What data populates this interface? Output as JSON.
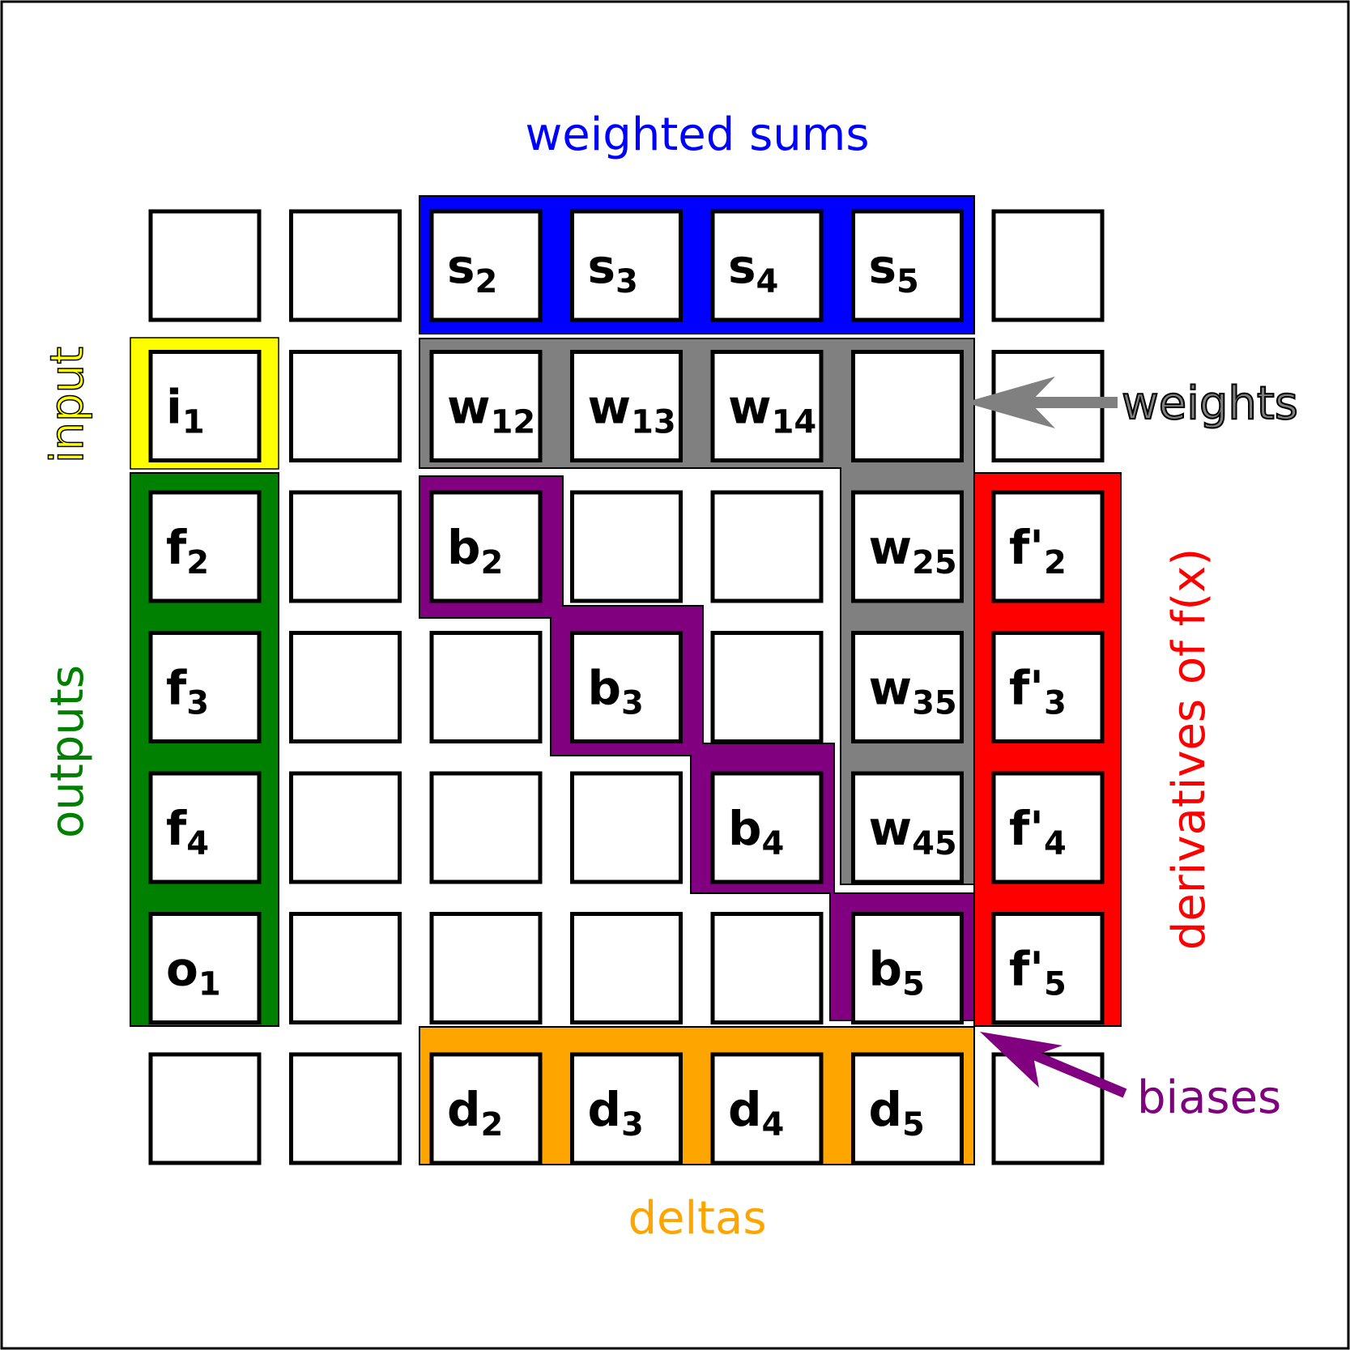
{
  "labels": {
    "weighted_sums": "weighted sums",
    "input": "input",
    "outputs": "outputs",
    "weights": "weights",
    "derivatives": "derivatives of f(x)",
    "biases": "biases",
    "deltas": "deltas"
  },
  "colors": {
    "weighted_sums": "#0000ff",
    "input": "#ffff00",
    "outputs": "#008000",
    "weights": "#808080",
    "derivatives": "#ff0000",
    "biases": "#800080",
    "deltas": "#ffa500",
    "output_cell_border": "#ff0000"
  },
  "grid": {
    "rows": 7,
    "cols": 7,
    "cells": [
      {
        "row": 0,
        "col": 2,
        "base": "s",
        "sub": "2"
      },
      {
        "row": 0,
        "col": 3,
        "base": "s",
        "sub": "3"
      },
      {
        "row": 0,
        "col": 4,
        "base": "s",
        "sub": "4"
      },
      {
        "row": 0,
        "col": 5,
        "base": "s",
        "sub": "5"
      },
      {
        "row": 1,
        "col": 0,
        "base": "i",
        "sub": "1"
      },
      {
        "row": 1,
        "col": 2,
        "base": "w",
        "sub": "12"
      },
      {
        "row": 1,
        "col": 3,
        "base": "w",
        "sub": "13"
      },
      {
        "row": 1,
        "col": 4,
        "base": "w",
        "sub": "14"
      },
      {
        "row": 2,
        "col": 0,
        "base": "f",
        "sub": "2"
      },
      {
        "row": 2,
        "col": 2,
        "base": "b",
        "sub": "2"
      },
      {
        "row": 2,
        "col": 5,
        "base": "w",
        "sub": "25"
      },
      {
        "row": 2,
        "col": 6,
        "base": "f'",
        "sub": "2"
      },
      {
        "row": 3,
        "col": 0,
        "base": "f",
        "sub": "3"
      },
      {
        "row": 3,
        "col": 3,
        "base": "b",
        "sub": "3"
      },
      {
        "row": 3,
        "col": 5,
        "base": "w",
        "sub": "35"
      },
      {
        "row": 3,
        "col": 6,
        "base": "f'",
        "sub": "3"
      },
      {
        "row": 4,
        "col": 0,
        "base": "f",
        "sub": "4"
      },
      {
        "row": 4,
        "col": 4,
        "base": "b",
        "sub": "4"
      },
      {
        "row": 4,
        "col": 5,
        "base": "w",
        "sub": "45"
      },
      {
        "row": 4,
        "col": 6,
        "base": "f'",
        "sub": "4"
      },
      {
        "row": 5,
        "col": 0,
        "base": "o",
        "sub": "1"
      },
      {
        "row": 5,
        "col": 5,
        "base": "b",
        "sub": "5"
      },
      {
        "row": 5,
        "col": 6,
        "base": "f'",
        "sub": "5"
      },
      {
        "row": 6,
        "col": 2,
        "base": "d",
        "sub": "2"
      },
      {
        "row": 6,
        "col": 3,
        "base": "d",
        "sub": "3"
      },
      {
        "row": 6,
        "col": 4,
        "base": "d",
        "sub": "4"
      },
      {
        "row": 6,
        "col": 5,
        "base": "d",
        "sub": "5"
      }
    ]
  }
}
